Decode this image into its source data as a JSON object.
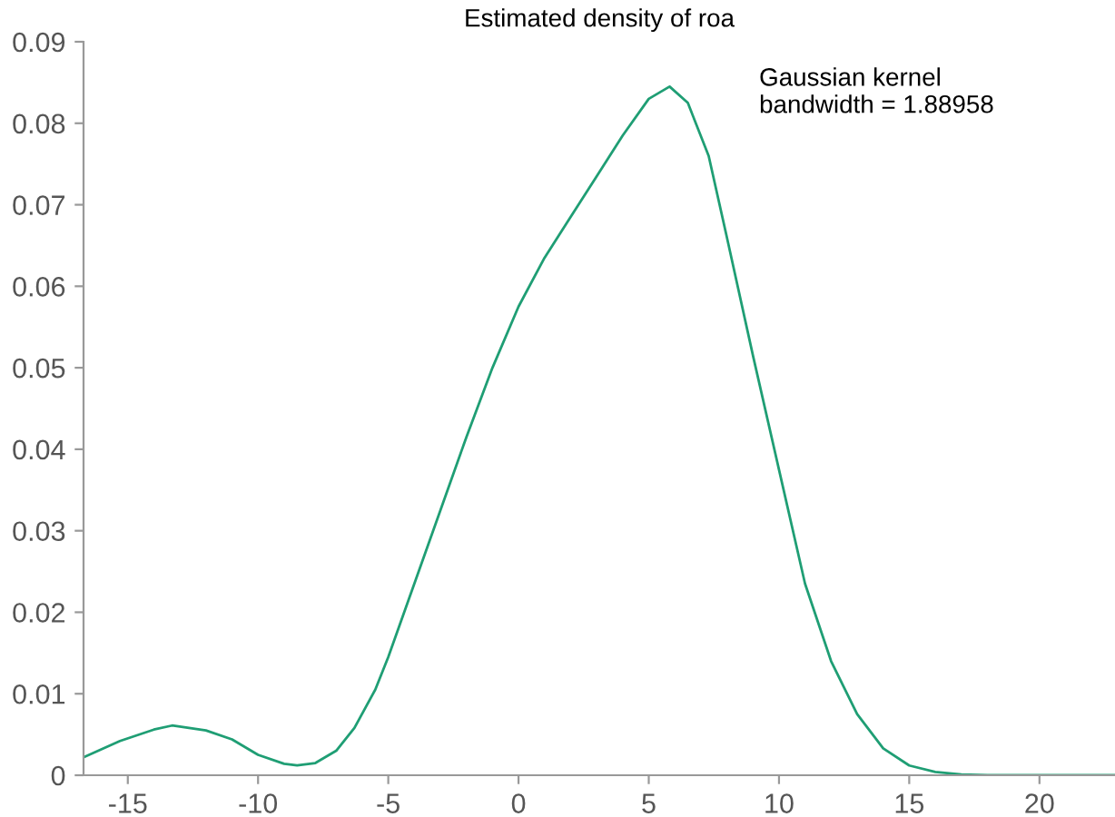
{
  "chart_data": {
    "type": "line",
    "title": "Estimated density of roa",
    "annotations": [
      "Gaussian kernel\nbandwidth = 1.88958"
    ],
    "x": [
      -16.7,
      -15.3,
      -14,
      -13.3,
      -12,
      -11,
      -10,
      -9,
      -8.5,
      -7.8,
      -7,
      -6.3,
      -5.5,
      -5,
      -4,
      -3,
      -2,
      -1,
      0,
      1,
      2,
      3,
      4,
      5,
      5.8,
      6.5,
      7.3,
      8,
      9,
      10,
      11,
      12,
      13,
      14,
      15,
      16,
      17,
      18,
      20,
      22.9
    ],
    "series": [
      {
        "color": "#1f9e74",
        "values": [
          0.0022,
          0.0042,
          0.0056,
          0.0061,
          0.0055,
          0.0044,
          0.0025,
          0.0014,
          0.0012,
          0.0015,
          0.003,
          0.0058,
          0.0105,
          0.0145,
          0.0235,
          0.0325,
          0.0415,
          0.05,
          0.0575,
          0.0635,
          0.0685,
          0.0735,
          0.0785,
          0.083,
          0.0845,
          0.0825,
          0.076,
          0.066,
          0.0515,
          0.0375,
          0.0235,
          0.014,
          0.0075,
          0.0033,
          0.0012,
          0.0004,
          0.0001,
          0,
          0,
          0
        ]
      }
    ],
    "xlim": [
      -16.7,
      22.9
    ],
    "ylim": [
      0,
      0.09
    ],
    "xticks": [
      -15,
      -10,
      -5,
      0,
      5,
      10,
      15,
      20
    ],
    "yticks": [
      0,
      0.01,
      0.02,
      0.03,
      0.04,
      0.05,
      0.06,
      0.07,
      0.08,
      0.09
    ],
    "grid": false,
    "legend": false
  }
}
